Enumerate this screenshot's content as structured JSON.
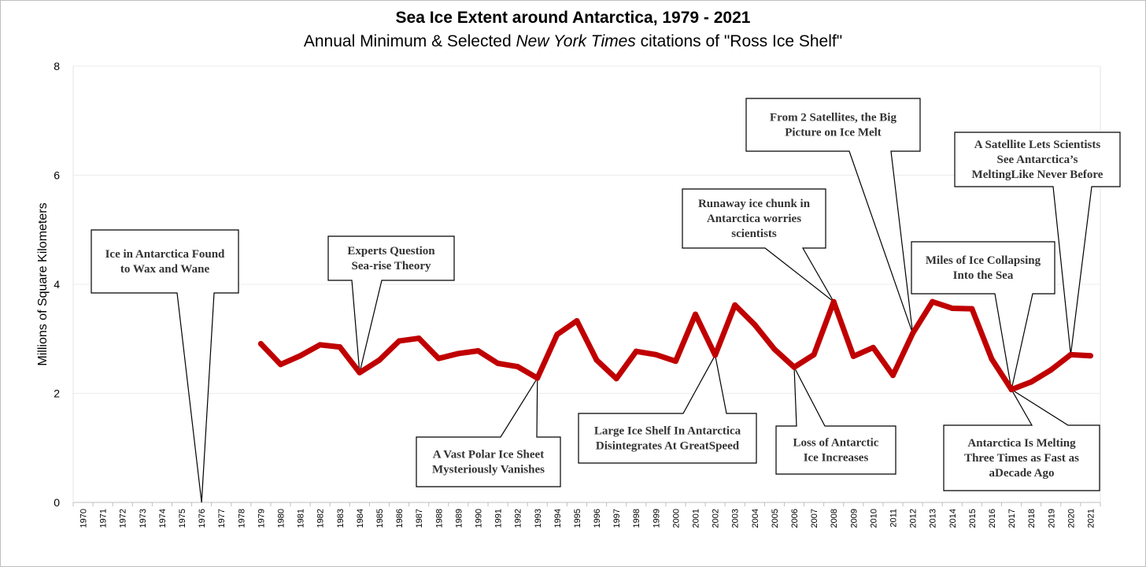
{
  "chart_data": {
    "type": "line",
    "title": "Sea Ice Extent around Antarctica, 1979 - 2021",
    "subtitle": {
      "before": "Annual Minimum & Selected ",
      "italic": "New York Times",
      "after": " citations of \"Ross Ice Shelf\""
    },
    "ylabel": "Millions of Square Kilometers",
    "xlabel": "",
    "ylim": [
      0,
      8
    ],
    "yticks": [
      "0",
      "2",
      "4",
      "6",
      "8"
    ],
    "grid": "horizontal",
    "x_categories": [
      "1970",
      "1971",
      "1972",
      "1973",
      "1974",
      "1975",
      "1976",
      "1977",
      "1978",
      "1979",
      "1980",
      "1981",
      "1982",
      "1983",
      "1984",
      "1985",
      "1986",
      "1987",
      "1988",
      "1989",
      "1990",
      "1991",
      "1992",
      "1993",
      "1994",
      "1995",
      "1996",
      "1997",
      "1998",
      "1999",
      "2000",
      "2001",
      "2002",
      "2003",
      "2004",
      "2005",
      "2006",
      "2007",
      "2008",
      "2009",
      "2010",
      "2011",
      "2012",
      "2013",
      "2014",
      "2015",
      "2016",
      "2017",
      "2018",
      "2019",
      "2020",
      "2021"
    ],
    "series": [
      {
        "color": "#c00000",
        "x": [
          "1979",
          "1980",
          "1981",
          "1982",
          "1983",
          "1984",
          "1985",
          "1986",
          "1987",
          "1988",
          "1989",
          "1990",
          "1991",
          "1992",
          "1993",
          "1994",
          "1995",
          "1996",
          "1997",
          "1998",
          "1999",
          "2000",
          "2001",
          "2002",
          "2003",
          "2004",
          "2005",
          "2006",
          "2007",
          "2008",
          "2009",
          "2010",
          "2011",
          "2012",
          "2013",
          "2014",
          "2015",
          "2016",
          "2017",
          "2018",
          "2019",
          "2020",
          "2021"
        ],
        "values": [
          2.91,
          2.53,
          2.69,
          2.89,
          2.85,
          2.38,
          2.61,
          2.96,
          3.01,
          2.64,
          2.73,
          2.78,
          2.55,
          2.49,
          2.28,
          3.08,
          3.33,
          2.61,
          2.27,
          2.77,
          2.71,
          2.59,
          3.45,
          2.7,
          3.62,
          3.26,
          2.81,
          2.48,
          2.71,
          3.68,
          2.68,
          2.84,
          2.33,
          3.1,
          3.68,
          3.56,
          3.55,
          2.63,
          2.07,
          2.21,
          2.43,
          2.71,
          2.69
        ]
      }
    ],
    "callouts": [
      {
        "lines": [
          "Ice in Antarctica Found",
          "to Wax and Wane"
        ],
        "year": "1976",
        "value": 0,
        "position": "above"
      },
      {
        "lines": [
          "Experts Question",
          "Sea-rise Theory"
        ],
        "year": "1984",
        "value": 2.38,
        "position": "above"
      },
      {
        "lines": [
          "A Vast Polar Ice Sheet",
          "Mysteriously Vanishes"
        ],
        "year": "1993",
        "value": 2.28,
        "position": "below"
      },
      {
        "lines": [
          "Large Ice Shelf In Antarctica",
          "Disintegrates At GreatSpeed"
        ],
        "year": "2002",
        "value": 2.7,
        "position": "below"
      },
      {
        "lines": [
          "Runaway ice chunk in",
          "Antarctica worries",
          "scientists"
        ],
        "year": "2008",
        "value": 3.68,
        "position": "above"
      },
      {
        "lines": [
          "Loss of Antarctic",
          "Ice Increases"
        ],
        "year": "2006",
        "value": 2.48,
        "position": "below"
      },
      {
        "lines": [
          "From 2 Satellites, the Big",
          "Picture on Ice Melt"
        ],
        "year": "2012",
        "value": 3.1,
        "position": "above"
      },
      {
        "lines": [
          "Miles of Ice Collapsing",
          "Into the Sea"
        ],
        "year": "2017",
        "value": 2.07,
        "position": "above"
      },
      {
        "lines": [
          "A Satellite Lets Scientists",
          "See Antarctica’s",
          "MeltingLike Never Before"
        ],
        "year": "2020",
        "value": 2.71,
        "position": "above"
      },
      {
        "lines": [
          "Antarctica Is Melting",
          "Three Times as Fast as",
          "aDecade Ago"
        ],
        "year": "2017",
        "value": 2.07,
        "position": "below"
      }
    ]
  }
}
